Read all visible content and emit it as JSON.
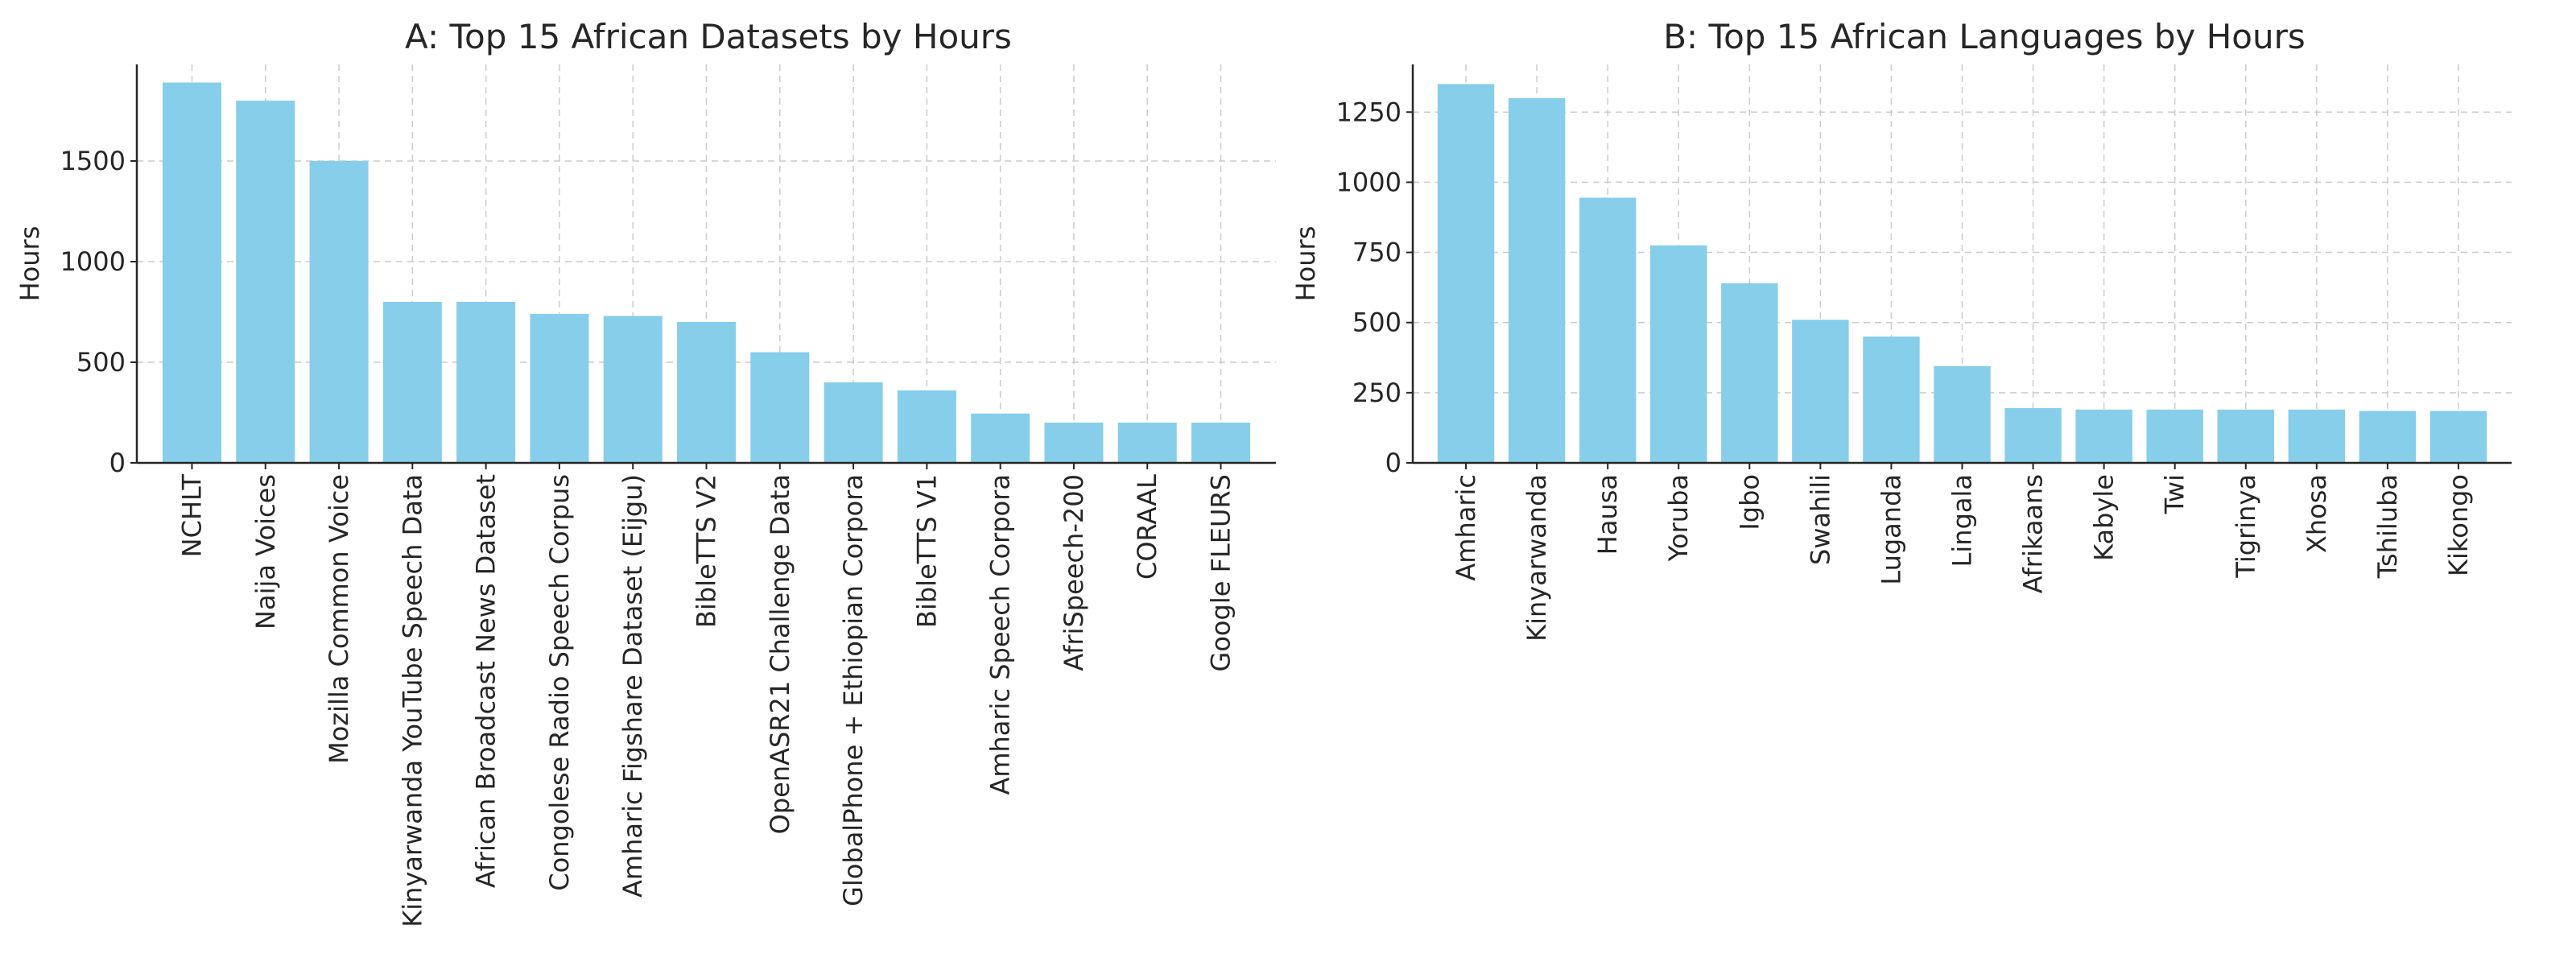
{
  "colors": {
    "bar": "#87CEEB",
    "axis": "#262626",
    "grid": "#cccccc"
  },
  "chart_data": [
    {
      "type": "bar",
      "title": "A: Top 15 African Datasets by Hours",
      "xlabel": "",
      "ylabel": "Hours",
      "ylim": [
        0,
        1980
      ],
      "yticks": [
        0,
        500,
        1000,
        1500
      ],
      "grid": true,
      "categories": [
        "NCHLT",
        "Naija Voices",
        "Mozilla Common Voice",
        "Kinyarwanda YouTube Speech Data",
        "African Broadcast News Dataset",
        "Congolese Radio Speech Corpus",
        "Amharic Figshare Dataset (Eijgu)",
        "BibleTTS V2",
        "OpenASR21 Challenge Data",
        "GlobalPhone + Ethiopian Corpora",
        "BibleTTS V1",
        "Amharic Speech Corpora",
        "AfriSpeech-200",
        "CORAAL",
        "Google FLEURS"
      ],
      "values": [
        1890,
        1800,
        1500,
        800,
        800,
        740,
        730,
        700,
        550,
        400,
        360,
        245,
        200,
        200,
        200
      ]
    },
    {
      "type": "bar",
      "title": "B: Top 15 African Languages by Hours",
      "xlabel": "",
      "ylabel": "Hours",
      "ylim": [
        0,
        1420
      ],
      "yticks": [
        0,
        250,
        500,
        750,
        1000,
        1250
      ],
      "grid": true,
      "categories": [
        "Amharic",
        "Kinyarwanda",
        "Hausa",
        "Yoruba",
        "Igbo",
        "Swahili",
        "Luganda",
        "Lingala",
        "Afrikaans",
        "Kabyle",
        "Twi",
        "Tigrinya",
        "Xhosa",
        "Tshiluba",
        "Kikongo"
      ],
      "values": [
        1350,
        1300,
        945,
        775,
        640,
        510,
        450,
        345,
        195,
        190,
        190,
        190,
        190,
        185,
        185
      ]
    }
  ]
}
